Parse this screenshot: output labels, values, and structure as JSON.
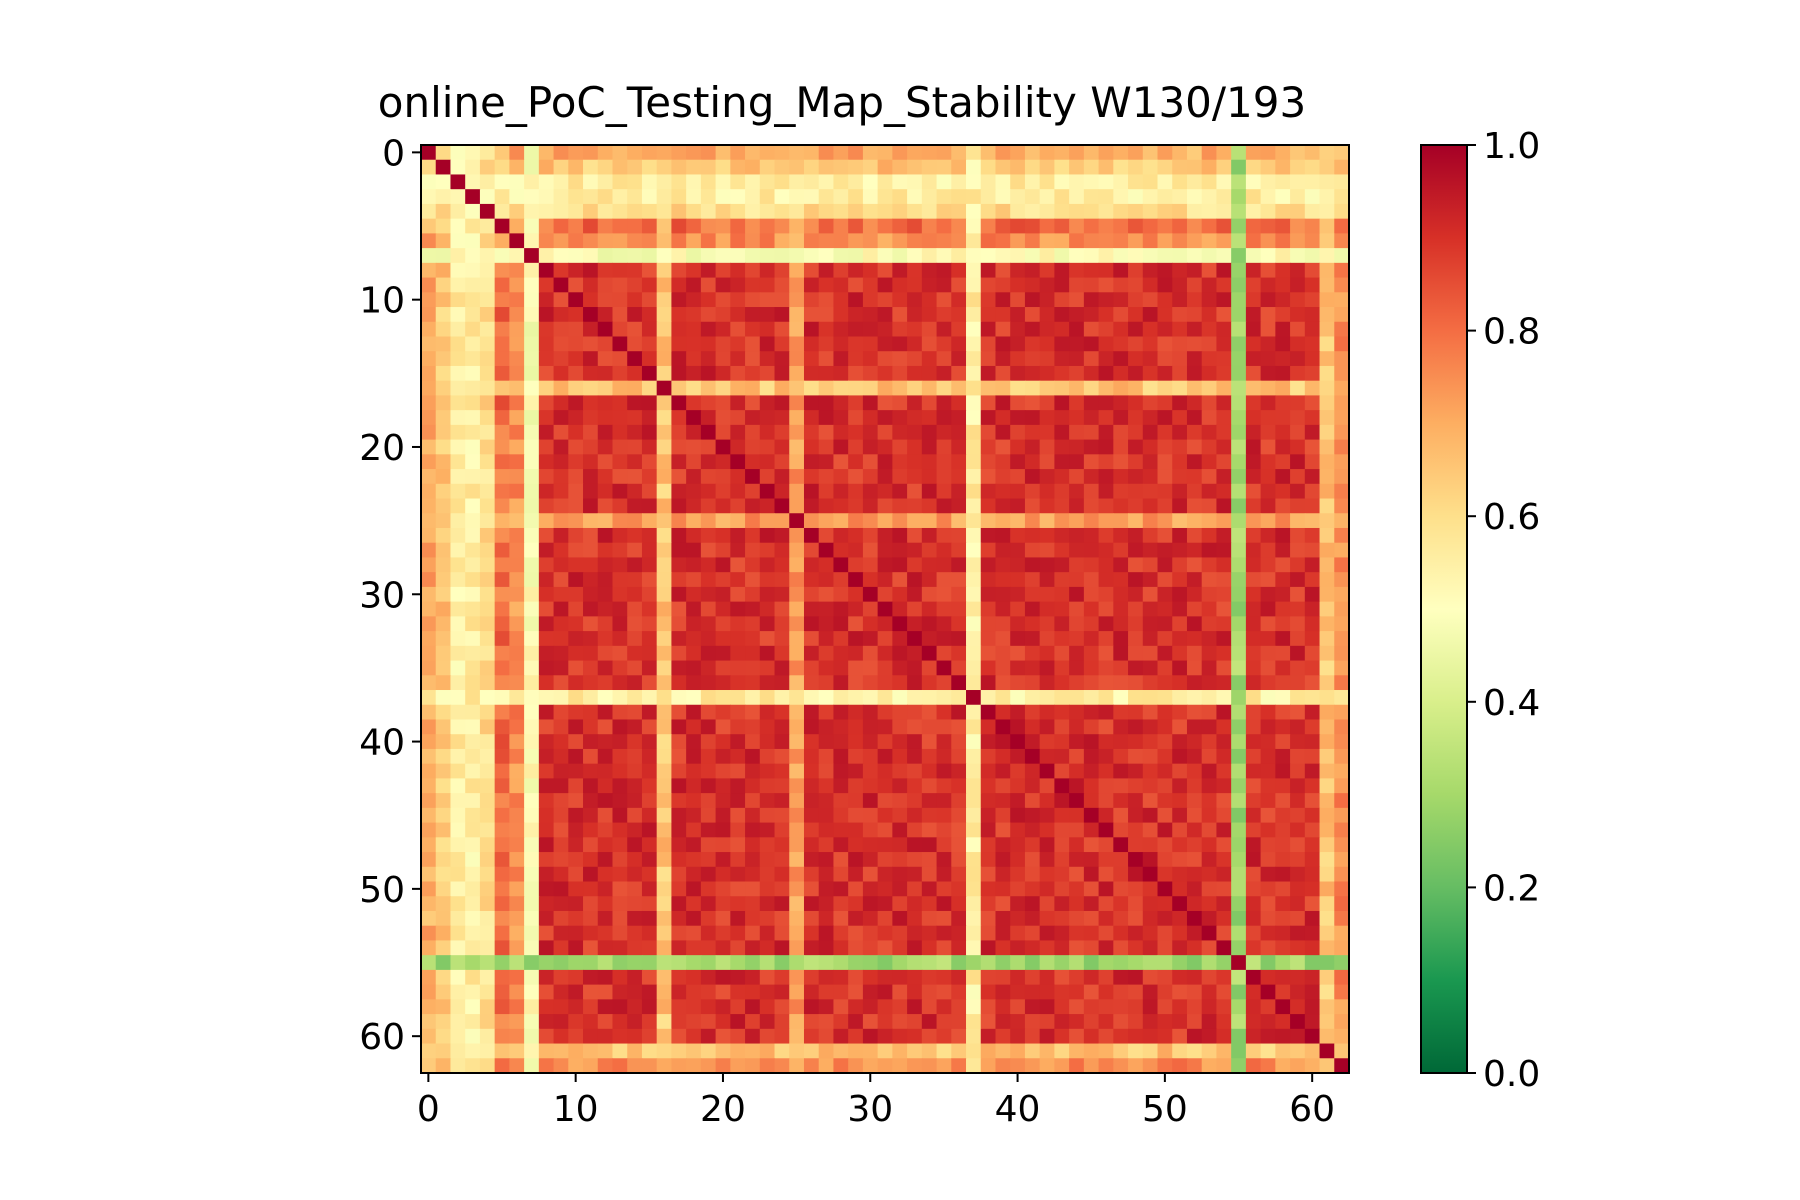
{
  "chart_data": {
    "type": "heatmap",
    "title": "online_PoC_Testing_Map_Stability W130/193",
    "xlabel": "",
    "ylabel": "",
    "size": 63,
    "x_ticks": [
      "0",
      "10",
      "20",
      "30",
      "40",
      "50",
      "60"
    ],
    "y_ticks": [
      "0",
      "10",
      "20",
      "30",
      "40",
      "50",
      "60"
    ],
    "colorbar": {
      "range": [
        0.0,
        1.0
      ],
      "tick_labels": [
        "0.0",
        "0.2",
        "0.4",
        "0.6",
        "0.8",
        "1.0"
      ],
      "colormap": "RdYlGn_r",
      "stops": [
        "#006837",
        "#1a9850",
        "#66bd63",
        "#a6d96a",
        "#d9ef8b",
        "#ffffbf",
        "#fee08b",
        "#fdae61",
        "#f46d43",
        "#d73027",
        "#a50026"
      ]
    },
    "base_similarity": 0.9,
    "rows": [
      {
        "index": 0,
        "typical_value": 0.7
      },
      {
        "index": 1,
        "typical_value": 0.65
      },
      {
        "index": 2,
        "typical_value": 0.55
      },
      {
        "index": 3,
        "typical_value": 0.55
      },
      {
        "index": 4,
        "typical_value": 0.6
      },
      {
        "index": 5,
        "typical_value": 0.8
      },
      {
        "index": 6,
        "typical_value": 0.75
      },
      {
        "index": 7,
        "typical_value": 0.5
      },
      {
        "index": 16,
        "typical_value": 0.65
      },
      {
        "index": 25,
        "typical_value": 0.72
      },
      {
        "index": 37,
        "typical_value": 0.55
      },
      {
        "index": 55,
        "typical_value": 0.3
      },
      {
        "index": 61,
        "typical_value": 0.65
      },
      {
        "index": 62,
        "typical_value": 0.75
      }
    ],
    "diagonal": 1.0
  }
}
